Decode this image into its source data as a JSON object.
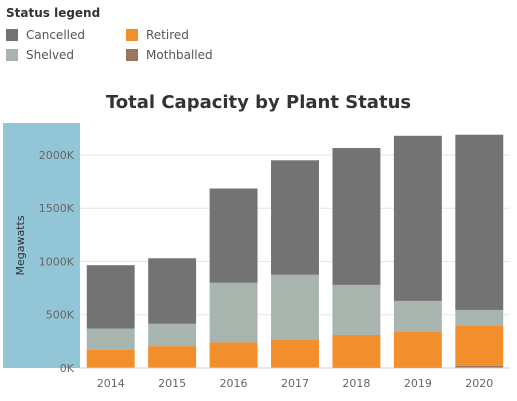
{
  "legend": {
    "title": "Status legend",
    "items": [
      {
        "label": "Cancelled",
        "color": "#737373"
      },
      {
        "label": "Retired",
        "color": "#f28e2b"
      },
      {
        "label": "Shelved",
        "color": "#a8b5ae"
      },
      {
        "label": "Mothballed",
        "color": "#9c755f"
      }
    ]
  },
  "chart_data": {
    "type": "bar",
    "stacked": true,
    "title": "Total Capacity by Plant Status",
    "xlabel": "",
    "ylabel": "Megawatts",
    "ylim": [
      0,
      2300000
    ],
    "yticks": [
      0,
      500000,
      1000000,
      1500000,
      2000000
    ],
    "ytick_labels": [
      "0K",
      "500K",
      "1000K",
      "1500K",
      "2000K"
    ],
    "grid": true,
    "legend_position": "top-left",
    "categories": [
      "2014",
      "2015",
      "2016",
      "2017",
      "2018",
      "2019",
      "2020"
    ],
    "series": [
      {
        "name": "Mothballed",
        "color": "#9c755f",
        "values": [
          0,
          0,
          0,
          0,
          10000,
          10000,
          20000
        ]
      },
      {
        "name": "Retired",
        "color": "#f28e2b",
        "values": [
          170000,
          205000,
          240000,
          270000,
          300000,
          335000,
          380000
        ]
      },
      {
        "name": "Shelved",
        "color": "#a8b5ae",
        "values": [
          200000,
          210000,
          560000,
          605000,
          470000,
          285000,
          145000
        ]
      },
      {
        "name": "Cancelled",
        "color": "#737373",
        "values": [
          595000,
          615000,
          885000,
          1075000,
          1285000,
          1550000,
          1645000
        ]
      }
    ]
  }
}
